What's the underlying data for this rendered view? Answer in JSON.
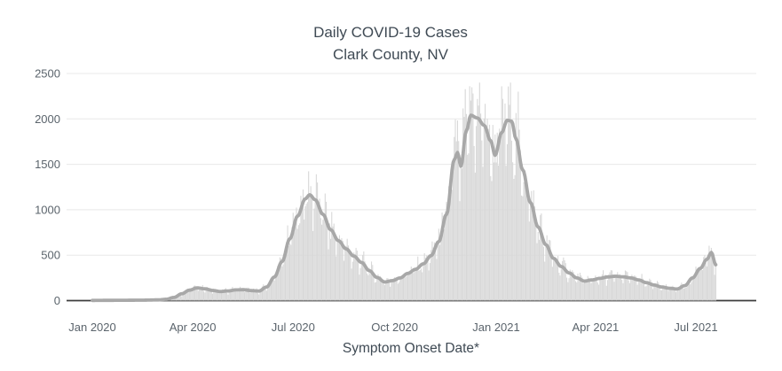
{
  "title": {
    "line1": "Daily COVID-19 Cases",
    "line2": "Clark County, NV"
  },
  "x_axis": {
    "label": "Symptom Onset Date*",
    "ticks": [
      {
        "label": "Jan 2020",
        "date": "2020-01-01"
      },
      {
        "label": "Apr 2020",
        "date": "2020-04-01"
      },
      {
        "label": "Jul 2020",
        "date": "2020-07-01"
      },
      {
        "label": "Oct 2020",
        "date": "2020-10-01"
      },
      {
        "label": "Jan 2021",
        "date": "2021-01-01"
      },
      {
        "label": "Apr 2021",
        "date": "2021-04-01"
      },
      {
        "label": "Jul 2021",
        "date": "2021-07-01"
      }
    ]
  },
  "y_axis": {
    "tick_labels": [
      "0",
      "500",
      "1000",
      "1500",
      "2000",
      "2500"
    ],
    "tick_values": [
      0,
      500,
      1000,
      1500,
      2000,
      2500
    ],
    "max": 2500
  },
  "colors": {
    "title": "#3f4a54",
    "axis_title": "#3f4a54",
    "tick": "#5b646c",
    "bar": "#d8d8d8",
    "line": "#a8a8a8",
    "grid": "#e8e8e8",
    "zeroline": "#3d3d3d",
    "background": "#ffffff"
  },
  "chart_data": {
    "type": "bar",
    "title": "Daily COVID-19 Cases",
    "subtitle": "Clark County, NV",
    "xlabel": "Symptom Onset Date*",
    "ylabel": "",
    "x_range": [
      "2020-01-01",
      "2021-07-19"
    ],
    "ylim": [
      0,
      2500
    ],
    "grid": true,
    "legend_position": "none",
    "series": [
      {
        "name": "daily-cases-bars",
        "type": "bar",
        "color": "#d8d8d8",
        "note": "One thin bar per day; daily counts scatter roughly ±25% around the 7-day average plus a weekly (weekend-low) pattern. Tallest bars ≈2400 in Dec 2020 and early Jan 2021, ≈1450 at the Jul 2020 peak, ≈650 at the Jul 2021 upswing.",
        "derived_from": "seven_day_average",
        "noise_amplitude": 0.2,
        "weekday_pattern_sun_to_sat": [
          -0.22,
          -0.1,
          0.03,
          0.1,
          0.14,
          0.1,
          -0.04
        ],
        "max_daily_bar": 2400
      },
      {
        "name": "seven-day-average-line",
        "type": "line",
        "color": "#a8a8a8",
        "points": [
          [
            "2020-01-01",
            2
          ],
          [
            "2020-01-15",
            3
          ],
          [
            "2020-02-01",
            4
          ],
          [
            "2020-02-15",
            5
          ],
          [
            "2020-03-01",
            8
          ],
          [
            "2020-03-08",
            15
          ],
          [
            "2020-03-15",
            35
          ],
          [
            "2020-03-22",
            75
          ],
          [
            "2020-03-29",
            115
          ],
          [
            "2020-04-05",
            140
          ],
          [
            "2020-04-12",
            130
          ],
          [
            "2020-04-19",
            112
          ],
          [
            "2020-04-26",
            100
          ],
          [
            "2020-05-03",
            106
          ],
          [
            "2020-05-10",
            118
          ],
          [
            "2020-05-17",
            120
          ],
          [
            "2020-05-24",
            110
          ],
          [
            "2020-05-31",
            105
          ],
          [
            "2020-06-07",
            150
          ],
          [
            "2020-06-14",
            260
          ],
          [
            "2020-06-21",
            430
          ],
          [
            "2020-06-28",
            680
          ],
          [
            "2020-07-05",
            930
          ],
          [
            "2020-07-12",
            1120
          ],
          [
            "2020-07-16",
            1165
          ],
          [
            "2020-07-21",
            1110
          ],
          [
            "2020-07-28",
            950
          ],
          [
            "2020-08-04",
            780
          ],
          [
            "2020-08-11",
            660
          ],
          [
            "2020-08-18",
            570
          ],
          [
            "2020-08-25",
            490
          ],
          [
            "2020-09-01",
            420
          ],
          [
            "2020-09-08",
            330
          ],
          [
            "2020-09-15",
            255
          ],
          [
            "2020-09-22",
            205
          ],
          [
            "2020-09-29",
            220
          ],
          [
            "2020-10-06",
            250
          ],
          [
            "2020-10-13",
            300
          ],
          [
            "2020-10-20",
            345
          ],
          [
            "2020-10-27",
            405
          ],
          [
            "2020-11-03",
            495
          ],
          [
            "2020-11-10",
            650
          ],
          [
            "2020-11-17",
            950
          ],
          [
            "2020-11-24",
            1550
          ],
          [
            "2020-11-27",
            1630
          ],
          [
            "2020-11-30",
            1480
          ],
          [
            "2020-12-05",
            1870
          ],
          [
            "2020-12-09",
            2040
          ],
          [
            "2020-12-15",
            2010
          ],
          [
            "2020-12-21",
            1930
          ],
          [
            "2020-12-27",
            1760
          ],
          [
            "2020-12-31",
            1600
          ],
          [
            "2021-01-06",
            1850
          ],
          [
            "2021-01-11",
            1985
          ],
          [
            "2021-01-15",
            1975
          ],
          [
            "2021-01-19",
            1780
          ],
          [
            "2021-01-25",
            1440
          ],
          [
            "2021-02-01",
            1080
          ],
          [
            "2021-02-08",
            810
          ],
          [
            "2021-02-15",
            615
          ],
          [
            "2021-02-22",
            465
          ],
          [
            "2021-03-01",
            375
          ],
          [
            "2021-03-08",
            305
          ],
          [
            "2021-03-15",
            250
          ],
          [
            "2021-03-22",
            215
          ],
          [
            "2021-03-29",
            228
          ],
          [
            "2021-04-05",
            245
          ],
          [
            "2021-04-12",
            260
          ],
          [
            "2021-04-19",
            268
          ],
          [
            "2021-04-26",
            262
          ],
          [
            "2021-05-03",
            250
          ],
          [
            "2021-05-10",
            228
          ],
          [
            "2021-05-17",
            198
          ],
          [
            "2021-05-24",
            172
          ],
          [
            "2021-05-31",
            150
          ],
          [
            "2021-06-07",
            136
          ],
          [
            "2021-06-14",
            128
          ],
          [
            "2021-06-21",
            165
          ],
          [
            "2021-06-28",
            250
          ],
          [
            "2021-07-05",
            355
          ],
          [
            "2021-07-11",
            455
          ],
          [
            "2021-07-15",
            530
          ],
          [
            "2021-07-19",
            395
          ]
        ]
      }
    ]
  }
}
